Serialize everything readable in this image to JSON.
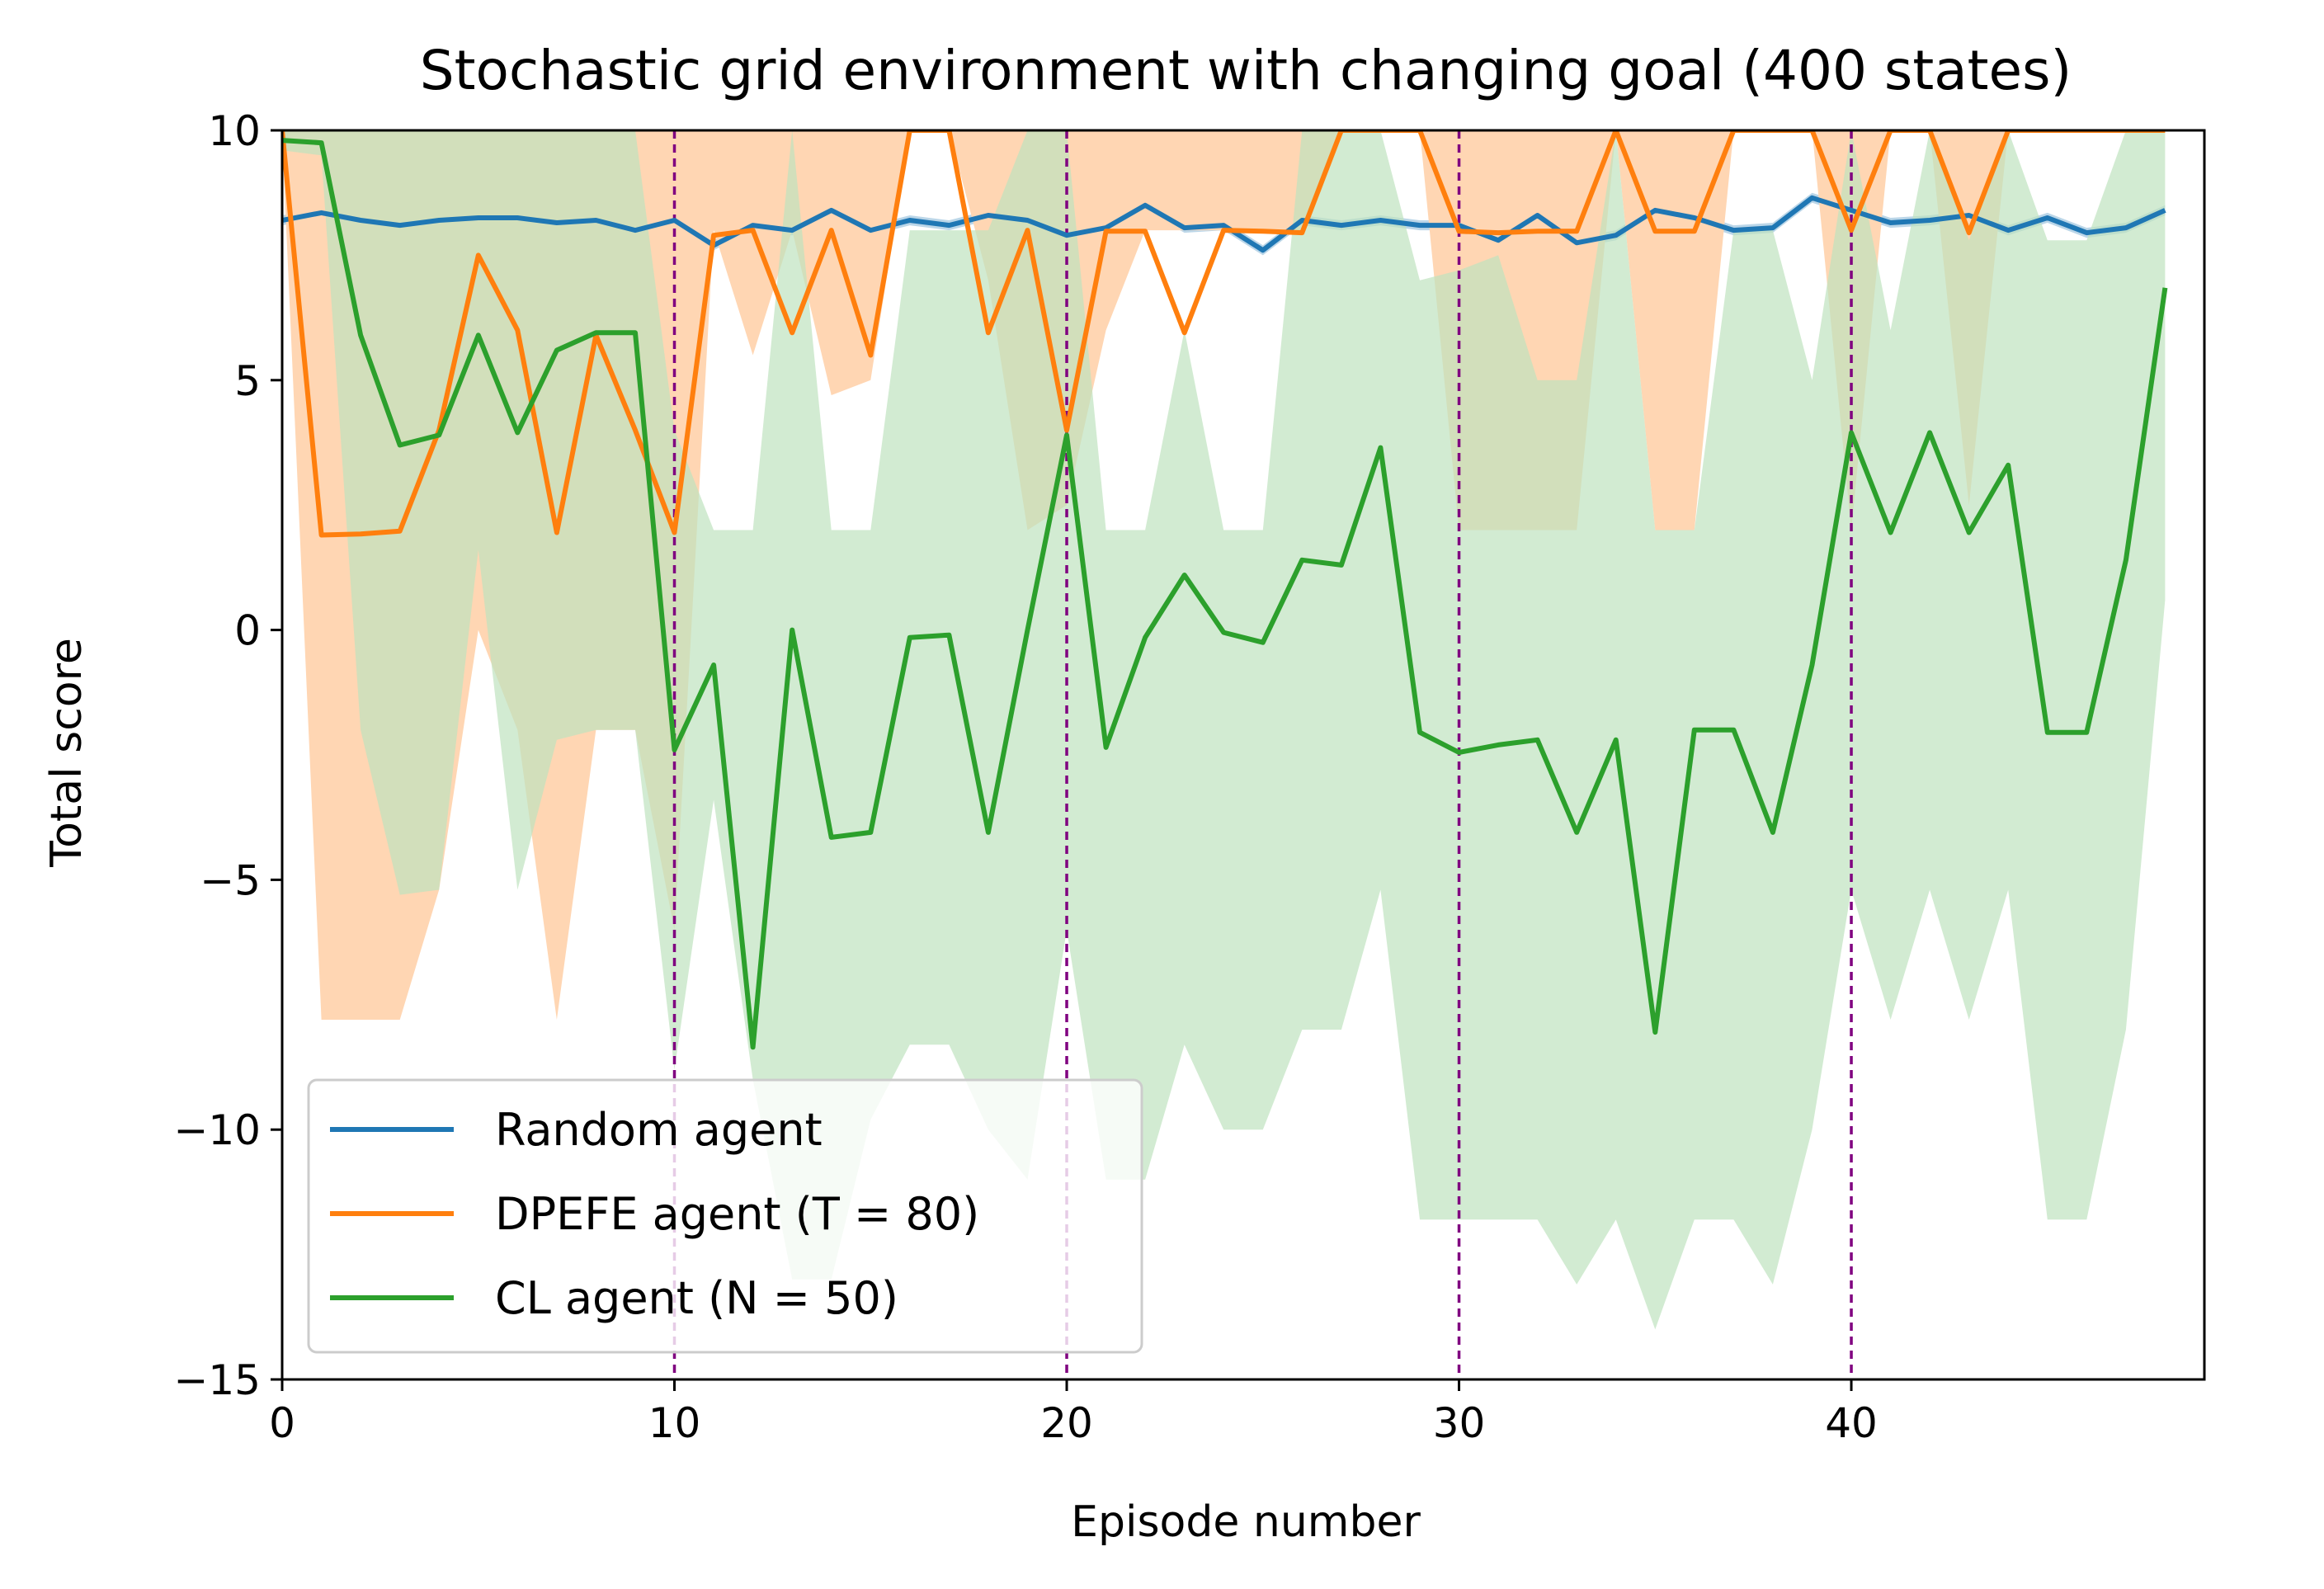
{
  "chart_data": {
    "type": "line",
    "title": "Stochastic grid environment with changing goal (400 states)",
    "xlabel": "Episode number",
    "ylabel": "Total score",
    "xlim": [
      0,
      49
    ],
    "ylim": [
      -15,
      10
    ],
    "xticks": [
      0,
      10,
      20,
      30,
      40
    ],
    "yticks": [
      10,
      5,
      0,
      -5,
      -10,
      -15
    ],
    "xtick_labels": [
      "0",
      "10",
      "20",
      "30",
      "40"
    ],
    "ytick_labels": [
      "10",
      "5",
      "0",
      "−5",
      "−10",
      "−15"
    ],
    "grid": false,
    "legend_position": "lower-left",
    "vlines": {
      "x": [
        10,
        20,
        30,
        40
      ],
      "color": "#800080",
      "style": "dashed"
    },
    "x": [
      0,
      1,
      2,
      3,
      4,
      5,
      6,
      7,
      8,
      9,
      10,
      11,
      12,
      13,
      14,
      15,
      16,
      17,
      18,
      19,
      20,
      21,
      22,
      23,
      24,
      25,
      26,
      27,
      28,
      29,
      30,
      31,
      32,
      33,
      34,
      35,
      36,
      37,
      38,
      39,
      40,
      41,
      42,
      43,
      44,
      45,
      46,
      47,
      48
    ],
    "series": [
      {
        "name": "Random agent",
        "color": "#1f77b4",
        "values": [
          8.2,
          8.35,
          8.2,
          8.1,
          8.2,
          8.25,
          8.25,
          8.15,
          8.2,
          8.0,
          8.2,
          7.7,
          8.1,
          8.0,
          8.4,
          8.0,
          8.2,
          8.1,
          8.3,
          8.2,
          7.9,
          8.05,
          8.5,
          8.05,
          8.1,
          7.6,
          8.2,
          8.1,
          8.2,
          8.1,
          8.1,
          7.8,
          8.3,
          7.75,
          7.9,
          8.4,
          8.25,
          8.0,
          8.05,
          8.65,
          8.4,
          8.15,
          8.2,
          8.3,
          8.0,
          8.25,
          7.95,
          8.05,
          8.4
        ],
        "band_upper": [
          8.3,
          8.45,
          8.3,
          8.2,
          8.3,
          8.35,
          8.35,
          8.25,
          8.3,
          8.1,
          8.3,
          7.8,
          8.2,
          8.1,
          8.5,
          8.1,
          8.3,
          8.2,
          8.4,
          8.3,
          8.0,
          8.15,
          8.6,
          8.15,
          8.2,
          7.7,
          8.3,
          8.2,
          8.3,
          8.2,
          8.2,
          7.9,
          8.4,
          7.85,
          8.0,
          8.5,
          8.35,
          8.1,
          8.15,
          8.75,
          8.5,
          8.25,
          8.3,
          8.4,
          8.1,
          8.35,
          8.05,
          8.15,
          8.5
        ],
        "band_lower": [
          8.1,
          8.25,
          8.1,
          8.0,
          8.1,
          8.15,
          8.15,
          8.05,
          8.1,
          7.9,
          8.1,
          7.6,
          8.0,
          7.9,
          8.3,
          7.9,
          8.1,
          8.0,
          8.2,
          8.1,
          7.8,
          7.95,
          8.4,
          7.95,
          8.0,
          7.5,
          8.1,
          8.0,
          8.1,
          8.0,
          8.0,
          7.7,
          8.2,
          7.65,
          7.8,
          8.3,
          8.15,
          7.9,
          7.95,
          8.55,
          8.3,
          8.05,
          8.1,
          8.2,
          7.9,
          8.15,
          7.85,
          7.95,
          8.3
        ]
      },
      {
        "name": "DPEFE agent (T = 80)",
        "color": "#ff7f0e",
        "band_color": "#ffd6b3",
        "values": [
          10.0,
          1.9,
          1.92,
          1.98,
          4.0,
          7.5,
          6.0,
          1.95,
          5.9,
          4.0,
          1.95,
          7.9,
          8.0,
          5.95,
          8.0,
          5.5,
          10.0,
          10.0,
          5.95,
          8.0,
          4.0,
          7.98,
          7.98,
          5.95,
          8.0,
          7.98,
          7.95,
          10.0,
          10.0,
          10.0,
          7.98,
          7.95,
          7.98,
          7.98,
          10.0,
          7.98,
          7.98,
          10.0,
          10.0,
          10.0,
          8.0,
          10.0,
          10.0,
          7.95,
          10.0,
          10.0,
          10.0,
          10.0,
          10.0
        ],
        "band_upper": [
          10.0,
          10.0,
          10.0,
          10.0,
          10.0,
          10.0,
          10.0,
          10.0,
          10.0,
          10.0,
          10.0,
          10.0,
          10.0,
          10.0,
          10.0,
          10.0,
          10.0,
          10.0,
          10.0,
          10.0,
          10.0,
          10.0,
          10.0,
          10.0,
          10.0,
          10.0,
          10.0,
          10.0,
          10.0,
          10.0,
          10.0,
          10.0,
          10.0,
          10.0,
          10.0,
          10.0,
          10.0,
          10.0,
          10.0,
          10.0,
          10.0,
          10.0,
          10.0,
          10.0,
          10.0,
          10.0,
          10.0,
          10.0,
          10.0
        ],
        "band_lower": [
          9.9,
          -7.8,
          -7.8,
          -7.8,
          -5.2,
          0,
          -2.0,
          -7.8,
          -2.0,
          -2.0,
          -6.0,
          8.0,
          5.5,
          8.0,
          4.7,
          5.0,
          10.0,
          10.0,
          7.0,
          2.0,
          2.5,
          6.0,
          8.0,
          8.0,
          8.0,
          8.0,
          8.0,
          10.0,
          10.0,
          10.0,
          2.0,
          2.0,
          2.0,
          2.0,
          10.0,
          2.0,
          2.0,
          10.0,
          10.0,
          10.0,
          2.0,
          10.0,
          10.0,
          2.5,
          10.0,
          10.0,
          10.0,
          10.0,
          10.0
        ]
      },
      {
        "name": "CL agent (N = 50)",
        "color": "#2ca02c",
        "band_color": "#bfe3bf",
        "values": [
          9.8,
          9.75,
          5.9,
          3.7,
          3.9,
          5.9,
          3.95,
          5.6,
          5.95,
          5.95,
          -2.4,
          -0.7,
          -8.35,
          0.0,
          -4.15,
          -4.05,
          -0.15,
          -0.1,
          -4.05,
          0.0,
          3.9,
          -2.35,
          -0.15,
          1.1,
          -0.05,
          -0.25,
          1.4,
          1.3,
          3.65,
          -2.05,
          -2.45,
          -2.3,
          -2.2,
          -4.05,
          -2.2,
          -8.05,
          -2.0,
          -2.0,
          -4.05,
          -0.7,
          3.95,
          1.95,
          3.95,
          1.95,
          3.3,
          -2.05,
          -2.05,
          1.4,
          6.85
        ],
        "band_upper": [
          10.0,
          10.0,
          10.0,
          10.0,
          10.0,
          10.0,
          10.0,
          10.0,
          10.0,
          10.0,
          4.0,
          2.0,
          2.0,
          10.0,
          2.0,
          2.0,
          8.0,
          8.0,
          8.0,
          10.0,
          10.0,
          2.0,
          2.0,
          6.0,
          2.0,
          2.0,
          10.0,
          10.0,
          10.0,
          7.0,
          7.2,
          7.5,
          5.0,
          5.0,
          10.0,
          2.0,
          2.0,
          8.0,
          8.0,
          5.0,
          10.0,
          6.0,
          10.0,
          7.8,
          10.0,
          7.8,
          7.8,
          10.0,
          10.0
        ],
        "band_lower": [
          9.6,
          9.5,
          -2.0,
          -5.3,
          -5.2,
          1.6,
          -5.2,
          -2.2,
          -2.0,
          -2.0,
          -8.8,
          -3.4,
          -9.0,
          -13.0,
          -13.0,
          -9.8,
          -8.3,
          -8.3,
          -10.0,
          -11.0,
          -6.0,
          -11.0,
          -11.0,
          -8.3,
          -10.0,
          -10.0,
          -8.0,
          -8.0,
          -5.2,
          -11.8,
          -11.8,
          -11.8,
          -11.8,
          -13.1,
          -11.8,
          -14.0,
          -11.8,
          -11.8,
          -13.1,
          -10.0,
          -5.2,
          -7.8,
          -5.2,
          -7.8,
          -5.2,
          -11.8,
          -11.8,
          -8.0,
          0.6
        ]
      }
    ]
  }
}
